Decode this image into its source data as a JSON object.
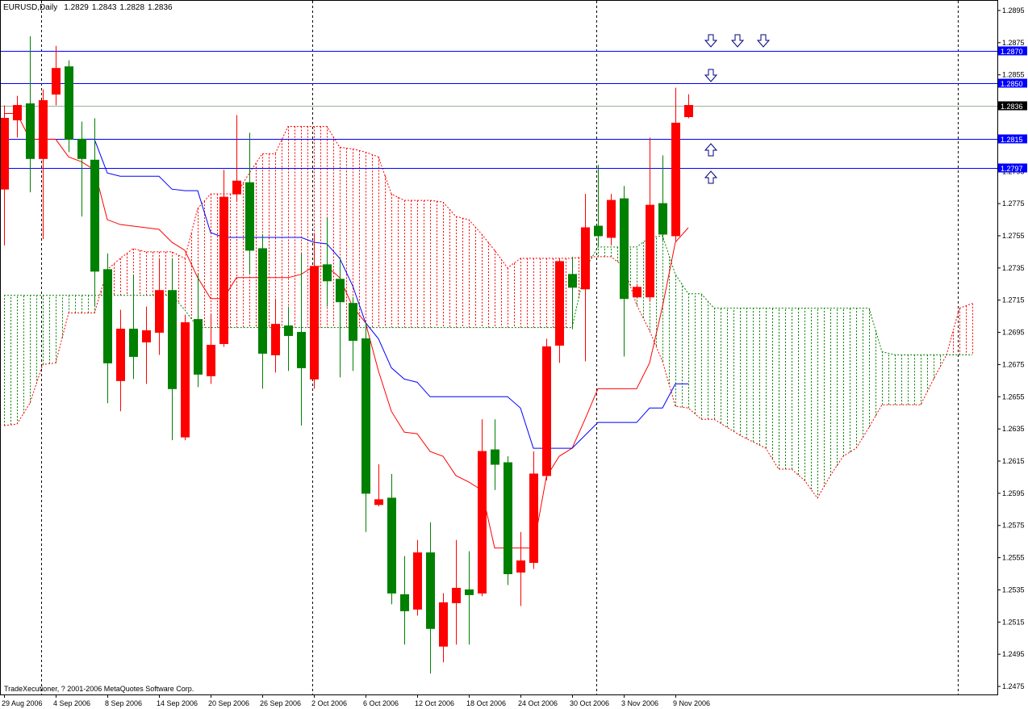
{
  "chart_data": {
    "type": "candlestick",
    "title": "EURUSD,Daily",
    "footer": "TradeXecutioner, ? 2001-2006 MetaQuotes Software Corp.",
    "categories": [
      "29 Aug 2006",
      null,
      null,
      null,
      "4 Sep 2006",
      null,
      null,
      null,
      "8 Sep 2006",
      null,
      null,
      null,
      "14 Sep 2006",
      null,
      null,
      null,
      "20 Sep 2006",
      null,
      null,
      null,
      "26 Sep 2006",
      null,
      null,
      null,
      "2 Oct 2006",
      null,
      null,
      null,
      "6 Oct 2006",
      null,
      null,
      null,
      "12 Oct 2006",
      null,
      null,
      null,
      "18 Oct 2006",
      null,
      null,
      null,
      "24 Oct 2006",
      null,
      null,
      null,
      "30 Oct 2006",
      null,
      null,
      null,
      "3 Nov 2006",
      null,
      null,
      null,
      "9 Nov 2006",
      null,
      null,
      null,
      null,
      null,
      null,
      null,
      null,
      null,
      null,
      null,
      null,
      null,
      null,
      null,
      null,
      null,
      null,
      null,
      null,
      null,
      null,
      null
    ],
    "open": [
      1.2784,
      1.2827,
      1.2837,
      1.2803,
      1.2843,
      1.286,
      1.2815,
      1.2802,
      1.2734,
      1.2665,
      1.2697,
      1.2689,
      1.2695,
      1.2721,
      1.263,
      1.2703,
      1.2668,
      1.2688,
      1.2781,
      1.2788,
      1.2747,
      1.2681,
      1.2699,
      1.2695,
      1.2666,
      1.2737,
      1.2728,
      1.2713,
      1.2691,
      1.2588,
      1.2592,
      1.2532,
      1.2523,
      1.2558,
      1.25,
      1.2527,
      1.2535,
      1.2533,
      1.2622,
      1.2614,
      1.2546,
      1.2552,
      1.2606,
      1.2687,
      1.2731,
      1.2722,
      1.2761,
      1.2754,
      1.2778,
      1.2717,
      1.2717,
      1.2775,
      1.2755,
      1.2829,
      null,
      null,
      null,
      null,
      null,
      null,
      null,
      null,
      null,
      null,
      null,
      null,
      null,
      null,
      null,
      null,
      null,
      null,
      null,
      null,
      null,
      null
    ],
    "high": [
      1.2836,
      1.2842,
      1.2879,
      1.2846,
      1.2873,
      1.2864,
      1.2826,
      1.2828,
      1.2744,
      1.2709,
      1.2731,
      1.2711,
      1.2741,
      1.2741,
      1.2706,
      1.2731,
      1.2706,
      1.2796,
      1.283,
      1.2819,
      1.2756,
      1.2716,
      1.2711,
      1.2744,
      1.2756,
      1.2766,
      1.2741,
      1.2717,
      1.2701,
      1.2613,
      1.2607,
      1.2556,
      1.2566,
      1.2577,
      1.2533,
      1.2566,
      1.2559,
      1.2641,
      1.2641,
      1.2618,
      1.2571,
      1.2621,
      1.2691,
      1.2741,
      1.2742,
      1.2781,
      1.2799,
      1.2781,
      1.2786,
      1.2725,
      1.2816,
      1.2805,
      1.2847,
      1.2843,
      null,
      null,
      null,
      null,
      null,
      null,
      null,
      null,
      null,
      null,
      null,
      null,
      null,
      null,
      null,
      null,
      null,
      null,
      null,
      null,
      null,
      null
    ],
    "low": [
      1.2749,
      1.2816,
      1.2782,
      1.2753,
      1.2836,
      1.2807,
      1.2767,
      1.2711,
      1.2651,
      1.2646,
      1.2666,
      1.2663,
      1.2681,
      1.2628,
      1.2628,
      1.2661,
      1.2663,
      1.2686,
      1.2776,
      1.2731,
      1.266,
      1.267,
      1.2671,
      1.2637,
      1.266,
      1.2711,
      1.2667,
      1.2671,
      1.2571,
      1.2587,
      1.2526,
      1.2501,
      1.2519,
      1.2483,
      1.249,
      1.2501,
      1.2501,
      1.2531,
      1.2597,
      1.2538,
      1.2525,
      1.2548,
      1.2603,
      1.2676,
      1.2697,
      1.2677,
      1.2748,
      1.2749,
      1.268,
      1.2716,
      1.2714,
      1.2752,
      1.2751,
      1.2828,
      null,
      null,
      null,
      null,
      null,
      null,
      null,
      null,
      null,
      null,
      null,
      null,
      null,
      null,
      null,
      null,
      null,
      null,
      null,
      null,
      null,
      null
    ],
    "close": [
      1.2828,
      1.2836,
      1.2803,
      1.2839,
      1.2859,
      1.2815,
      1.2803,
      1.2733,
      1.2676,
      1.2697,
      1.268,
      1.2696,
      1.2721,
      1.266,
      1.2701,
      1.2669,
      1.2687,
      1.2779,
      1.2789,
      1.2746,
      1.2682,
      1.27,
      1.2693,
      1.2673,
      1.2736,
      1.2727,
      1.2714,
      1.269,
      1.2595,
      1.2591,
      1.2533,
      1.2522,
      1.2558,
      1.2511,
      1.2527,
      1.2536,
      1.2532,
      1.2621,
      1.2613,
      1.2545,
      1.2553,
      1.2607,
      1.2686,
      1.2739,
      1.2723,
      1.276,
      1.2755,
      1.2777,
      1.2716,
      1.2723,
      1.2774,
      1.2756,
      1.2825,
      1.2836,
      null,
      null,
      null,
      null,
      null,
      null,
      null,
      null,
      null,
      null,
      null,
      null,
      null,
      null,
      null,
      null,
      null,
      null,
      null,
      null,
      null,
      null
    ],
    "up_color": "#ff0000",
    "down_color": "#008000",
    "lines": [
      {
        "color": "#ff0000",
        "values": [
          1.2831,
          1.2831,
          1.2815,
          1.2815,
          1.2815,
          1.2804,
          1.2801,
          1.2796,
          1.2765,
          1.2762,
          1.2761,
          1.276,
          1.2759,
          1.2751,
          1.2746,
          1.2729,
          1.2716,
          1.2716,
          1.2729,
          1.2729,
          1.2729,
          1.2729,
          1.2729,
          1.2731,
          1.2736,
          1.2736,
          1.2729,
          1.2711,
          1.2701,
          1.2671,
          1.2646,
          1.2633,
          1.2632,
          1.2621,
          1.2618,
          1.2606,
          1.2602,
          1.2597,
          1.2561,
          1.2561,
          1.2561,
          1.2561,
          1.2605,
          1.2618,
          1.2623,
          1.2641,
          1.266,
          1.266,
          1.266,
          1.266,
          1.2676,
          1.2711,
          1.2751,
          1.276,
          null,
          null,
          null,
          null,
          null,
          null,
          null,
          null,
          null,
          null,
          null,
          null,
          null,
          null,
          null,
          null,
          null,
          null,
          null,
          null,
          null,
          null
        ]
      },
      {
        "color": "#0000ff",
        "values": [
          null,
          null,
          null,
          null,
          null,
          null,
          1.2815,
          1.2815,
          1.2794,
          1.2792,
          1.2792,
          1.2792,
          1.2792,
          1.2784,
          1.2783,
          1.2783,
          1.2757,
          1.2754,
          1.2754,
          1.2754,
          1.2754,
          1.2754,
          1.2754,
          1.2754,
          1.2751,
          1.275,
          1.2741,
          1.2724,
          1.2701,
          1.2691,
          1.2673,
          1.2666,
          1.2664,
          1.2655,
          1.2655,
          1.2655,
          1.2655,
          1.2655,
          1.2655,
          1.2655,
          1.2648,
          1.2623,
          1.2623,
          1.2623,
          1.2623,
          1.2631,
          1.2639,
          1.2639,
          1.2639,
          1.2639,
          1.2648,
          1.2648,
          1.2663,
          1.2663,
          null,
          null,
          null,
          null,
          null,
          null,
          null,
          null,
          null,
          null,
          null,
          null,
          null,
          null,
          null,
          null,
          null,
          null,
          null,
          null,
          null,
          null
        ]
      }
    ],
    "cloud": [
      {
        "color": "#ff0000",
        "values": [
          1.2637,
          1.2638,
          1.2651,
          1.2675,
          1.2676,
          1.2707,
          1.2707,
          1.2707,
          1.2734,
          1.2741,
          1.2747,
          1.2745,
          1.2745,
          1.2745,
          1.2741,
          1.2772,
          1.2781,
          1.2781,
          1.2781,
          1.2794,
          1.2806,
          1.2806,
          1.2823,
          1.2823,
          1.2823,
          1.2823,
          1.281,
          1.2809,
          1.2807,
          1.2804,
          1.2781,
          1.2777,
          1.2777,
          1.2777,
          1.2776,
          1.2767,
          1.2765,
          1.2756,
          1.2746,
          1.2735,
          1.2741,
          1.2741,
          1.2741,
          1.2741,
          1.2741,
          1.2742,
          1.2742,
          1.2742,
          1.2736,
          1.2712,
          1.2696,
          1.2677,
          1.2649,
          1.2648,
          1.2641,
          1.2641,
          1.2636,
          1.2631,
          1.2627,
          1.2623,
          1.261,
          1.261,
          1.2603,
          1.2592,
          1.2606,
          1.2618,
          1.2623,
          1.2636,
          1.265,
          1.265,
          1.265,
          1.265,
          1.2666,
          1.2681,
          1.271,
          1.2713
        ]
      },
      {
        "color": "#008000",
        "values": [
          1.2718,
          1.2718,
          1.2718,
          1.2718,
          1.2718,
          1.2718,
          1.2718,
          1.2718,
          1.2718,
          1.2718,
          1.2718,
          1.2718,
          1.2718,
          1.2718,
          1.2709,
          1.2698,
          1.2698,
          1.2698,
          1.2698,
          1.2698,
          1.2698,
          1.2698,
          1.2698,
          1.2698,
          1.2698,
          1.2698,
          1.2698,
          1.2698,
          1.2698,
          1.2698,
          1.2698,
          1.2698,
          1.2698,
          1.2698,
          1.2698,
          1.2698,
          1.2698,
          1.2698,
          1.2698,
          1.2698,
          1.2698,
          1.2698,
          1.2698,
          1.2698,
          1.2698,
          1.2734,
          1.2748,
          1.2748,
          1.2748,
          1.2748,
          1.2754,
          1.2755,
          1.2731,
          1.2719,
          1.2719,
          1.271,
          1.271,
          1.271,
          1.271,
          1.271,
          1.271,
          1.271,
          1.271,
          1.271,
          1.271,
          1.271,
          1.271,
          1.271,
          1.2683,
          1.2681,
          1.2681,
          1.2681,
          1.2681,
          1.2681,
          1.2681,
          1.2681
        ]
      }
    ],
    "hlines": [
      {
        "value": 1.287,
        "label": "1.2870"
      },
      {
        "value": 1.285,
        "label": "1.2850"
      },
      1.2815,
      1.2797
    ],
    "hline_color": "#0000ff",
    "last_price": 1.2836,
    "last_price_color": "#9bb09b",
    "ylim": [
      1.247,
      1.2901
    ],
    "yticks": [
      1.2895,
      1.2875,
      1.2855,
      1.2835,
      1.2815,
      1.2795,
      1.2775,
      1.2755,
      1.2735,
      1.2715,
      1.2695,
      1.2675,
      1.2655,
      1.2635,
      1.2615,
      1.2595,
      1.2575,
      1.2555,
      1.2535,
      1.2515,
      1.2495,
      1.2475
    ]
  }
}
